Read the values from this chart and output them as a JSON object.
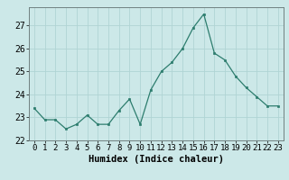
{
  "x": [
    0,
    1,
    2,
    3,
    4,
    5,
    6,
    7,
    8,
    9,
    10,
    11,
    12,
    13,
    14,
    15,
    16,
    17,
    18,
    19,
    20,
    21,
    22,
    23
  ],
  "y": [
    23.4,
    22.9,
    22.9,
    22.5,
    22.7,
    23.1,
    22.7,
    22.7,
    23.3,
    23.8,
    22.7,
    24.2,
    25.0,
    25.4,
    26.0,
    26.9,
    27.5,
    25.8,
    25.5,
    24.8,
    24.3,
    23.9,
    23.5,
    23.5
  ],
  "line_color": "#2d7d6e",
  "marker_color": "#2d7d6e",
  "bg_color": "#cce8e8",
  "grid_color": "#b0d4d4",
  "xlabel": "Humidex (Indice chaleur)",
  "ylim": [
    22,
    27.8
  ],
  "yticks": [
    22,
    23,
    24,
    25,
    26,
    27
  ],
  "xticks": [
    0,
    1,
    2,
    3,
    4,
    5,
    6,
    7,
    8,
    9,
    10,
    11,
    12,
    13,
    14,
    15,
    16,
    17,
    18,
    19,
    20,
    21,
    22,
    23
  ],
  "xlabel_fontsize": 7.5,
  "ytick_fontsize": 7,
  "xtick_fontsize": 6.5
}
